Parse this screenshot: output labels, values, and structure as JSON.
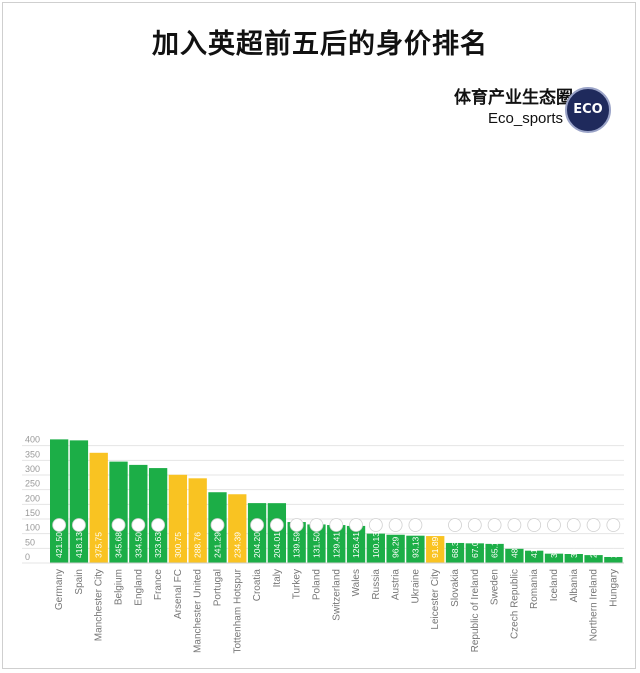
{
  "title": "加入英超前五后的身价排名",
  "brand": {
    "name_cn": "体育产业生态圈",
    "name_en": "Eco_sports",
    "logo_text": "ECO"
  },
  "colors": {
    "green": "#1cae47",
    "yellow": "#f9c322",
    "grid": "#e4e4e4"
  },
  "chart_data": {
    "type": "bar",
    "title": "加入英超前五后的身价排名",
    "xlabel": "",
    "ylabel": "",
    "ylim": [
      0,
      440
    ],
    "yticks": [
      0,
      50,
      100,
      150,
      200,
      250,
      300,
      350,
      400
    ],
    "grid": true,
    "categories": [
      "Germany",
      "Spain",
      "Manchester City",
      "Belgium",
      "England",
      "France",
      "Arsenal FC",
      "Manchester United",
      "Portugal",
      "Tottenham Hotspur",
      "Croatia",
      "Italy",
      "Turkey",
      "Poland",
      "Switzerland",
      "Wales",
      "Russia",
      "Austria",
      "Ukraine",
      "Leicester City",
      "Slovakia",
      "Republic of Ireland",
      "Sweden",
      "Czech Republic",
      "Romania",
      "Iceland",
      "Albania",
      "Northern Ireland",
      "Hungary"
    ],
    "values": [
      421.5,
      418.13,
      375.75,
      345.68,
      334.5,
      323.63,
      300.75,
      288.76,
      241.29,
      234.39,
      204.2,
      204.01,
      139.59,
      131.5,
      129.41,
      126.41,
      100.13,
      96.29,
      93.13,
      91.89,
      68.33,
      67.02,
      65.18,
      48.39,
      41.99,
      31.85,
      30.67,
      26.94,
      20.49
    ],
    "value_labels": [
      "421.50",
      "418.13",
      "375.75",
      "345.68",
      "334.50",
      "323.63",
      "300.75",
      "288.76",
      "241.29",
      "234.39",
      "204.20",
      "204.01",
      "139.59",
      "131.50",
      "129.41",
      "126.41",
      "100.13",
      "96.29",
      "93.13",
      "91.89",
      "68.33",
      "67.02",
      "65.18",
      "48.39",
      "41.99",
      "31.85",
      "30.67",
      "26.94",
      "20.49"
    ],
    "is_club": [
      false,
      false,
      true,
      false,
      false,
      false,
      true,
      true,
      false,
      true,
      false,
      false,
      false,
      false,
      false,
      false,
      false,
      false,
      false,
      true,
      false,
      false,
      false,
      false,
      false,
      false,
      false,
      false,
      false
    ],
    "flag_icons": [
      "flag-germany-icon",
      "flag-spain-icon",
      null,
      "flag-belgium-icon",
      "flag-england-icon",
      "flag-france-icon",
      null,
      null,
      "flag-portugal-icon",
      null,
      "flag-croatia-icon",
      "flag-italy-icon",
      "flag-turkey-icon",
      "flag-poland-icon",
      "flag-switzerland-icon",
      "flag-wales-icon",
      "flag-russia-icon",
      "flag-austria-icon",
      "flag-ukraine-icon",
      null,
      "flag-slovakia-icon",
      "flag-ireland-icon",
      "flag-sweden-icon",
      "flag-czech-republic-icon",
      "flag-romania-icon",
      "flag-iceland-icon",
      "flag-albania-icon",
      "flag-northern-ireland-icon",
      "flag-hungary-icon"
    ]
  }
}
